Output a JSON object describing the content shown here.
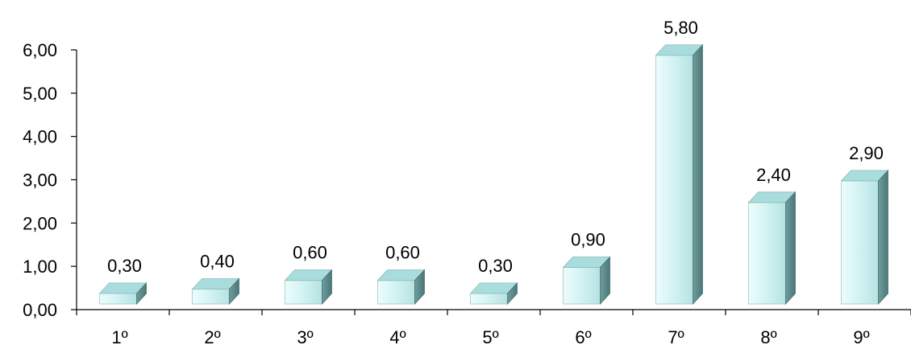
{
  "chart_data": {
    "type": "bar",
    "style": "3d-column",
    "categories": [
      "1º",
      "2º",
      "3º",
      "4º",
      "5º",
      "6º",
      "7º",
      "8º",
      "9º"
    ],
    "values": [
      0.3,
      0.4,
      0.6,
      0.6,
      0.3,
      0.9,
      5.8,
      2.4,
      2.9
    ],
    "value_labels": [
      "0,30",
      "0,40",
      "0,60",
      "0,60",
      "0,30",
      "0,90",
      "5,80",
      "2,40",
      "2,90"
    ],
    "yticks": [
      0,
      1,
      2,
      3,
      4,
      5,
      6
    ],
    "ytick_labels": [
      "0,00",
      "1,00",
      "2,00",
      "3,00",
      "4,00",
      "5,00",
      "6,00"
    ],
    "ylim": [
      0,
      6
    ],
    "grid": false,
    "colors": {
      "front": "#d6f4f4",
      "top": "#a9dcdc",
      "side": "#5f8c8c"
    }
  }
}
